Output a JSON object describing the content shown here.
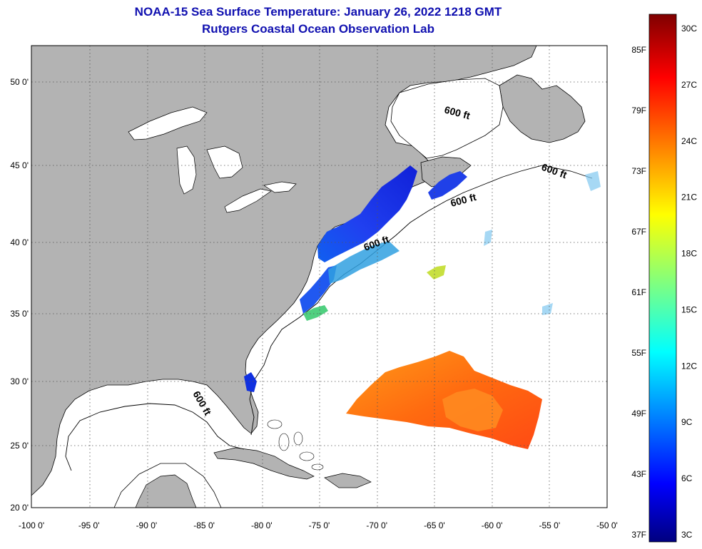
{
  "title": "NOAA-15 Sea Surface Temperature:  January 26, 2022 1218 GMT",
  "subtitle": "Rutgers Coastal Ocean Observation Lab",
  "lat_labels": [
    {
      "lat": 50,
      "text": "50 0'"
    },
    {
      "lat": 45,
      "text": "45 0'"
    },
    {
      "lat": 40,
      "text": "40 0'"
    },
    {
      "lat": 35,
      "text": "35 0'"
    },
    {
      "lat": 30,
      "text": "30 0'"
    },
    {
      "lat": 25,
      "text": "25 0'"
    },
    {
      "lat": 20,
      "text": "20 0'"
    }
  ],
  "lon_labels": [
    {
      "lon": -100,
      "text": "-100 0'"
    },
    {
      "lon": -95,
      "text": "-95 0'"
    },
    {
      "lon": -90,
      "text": "-90 0'"
    },
    {
      "lon": -85,
      "text": "-85 0'"
    },
    {
      "lon": -80,
      "text": "-80 0'"
    },
    {
      "lon": -75,
      "text": "-75 0'"
    },
    {
      "lon": -70,
      "text": "-70 0'"
    },
    {
      "lon": -65,
      "text": "-65 0'"
    },
    {
      "lon": -60,
      "text": "-60 0'"
    },
    {
      "lon": -55,
      "text": "-55 0'"
    },
    {
      "lon": -50,
      "text": "-50 0'"
    }
  ],
  "contour_label": "600 ft",
  "colorbar": {
    "celsius": [
      "3C",
      "6C",
      "9C",
      "12C",
      "15C",
      "18C",
      "21C",
      "24C",
      "27C",
      "30C"
    ],
    "fahrenheit": [
      "37F",
      "43F",
      "49F",
      "55F",
      "61F",
      "67F",
      "73F",
      "79F",
      "85F"
    ]
  },
  "colors": {
    "land": "#b3b3b3",
    "title": "#1010b0"
  }
}
